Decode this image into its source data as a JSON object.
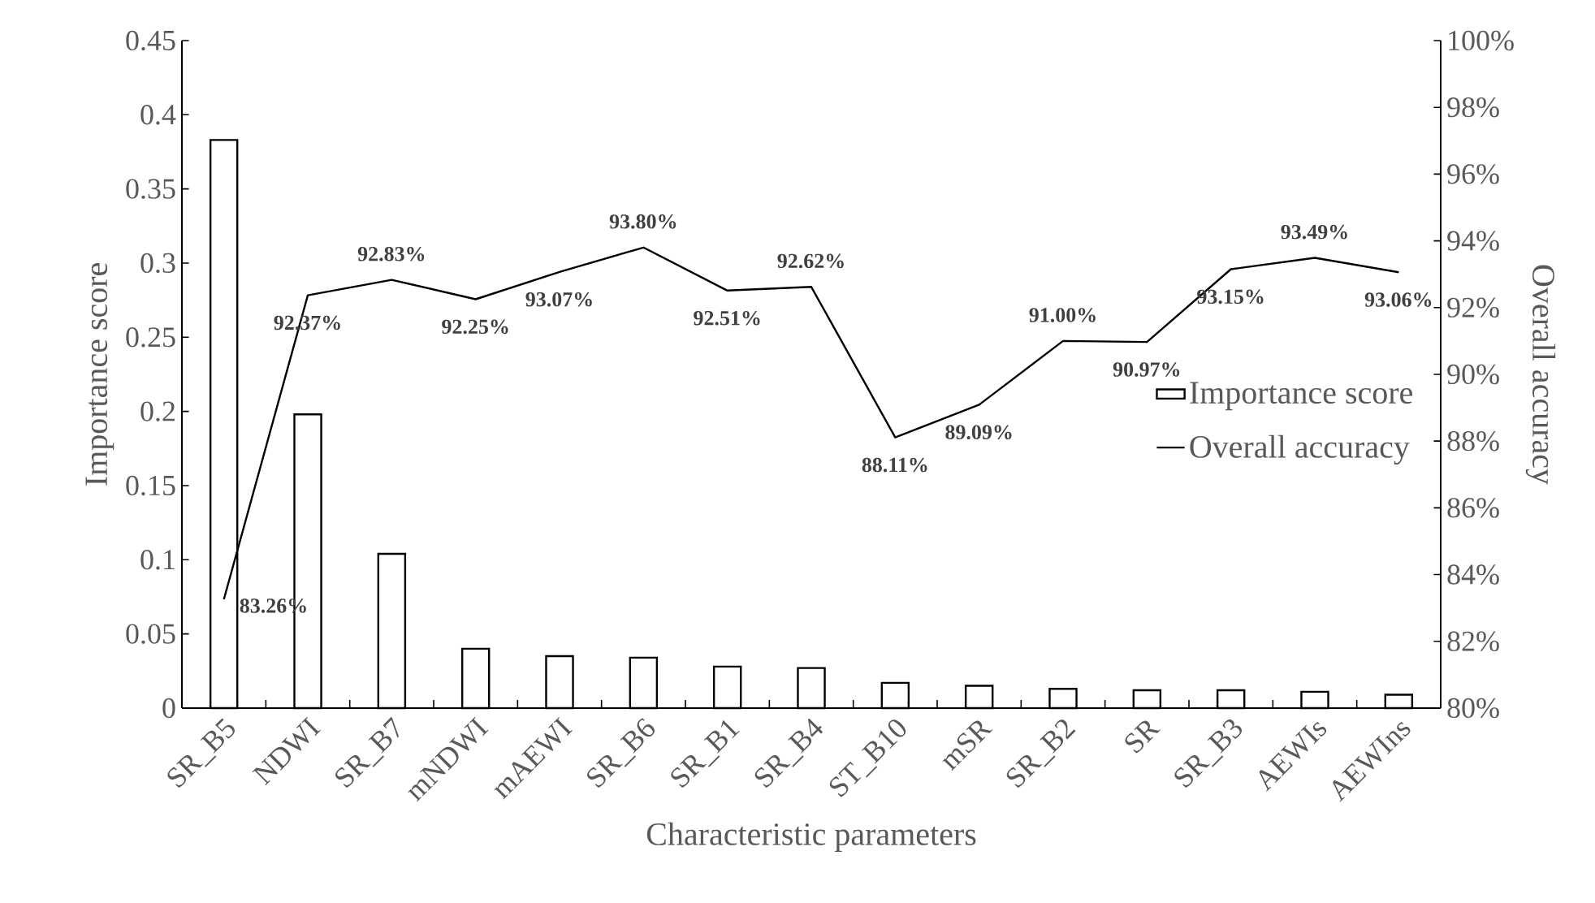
{
  "chart_data": {
    "type": "bar",
    "xlabel": "Characteristic parameters",
    "ylabel": "Importance score",
    "y2label": "Overall accuracy",
    "categories": [
      "SR_B5",
      "NDWI",
      "SR_B7",
      "mNDWI",
      "mAEWI",
      "SR_B6",
      "SR_B1",
      "SR_B4",
      "ST_B10",
      "mSR",
      "SR_B2",
      "SR",
      "SR_B3",
      "AEWIs",
      "AEWIns"
    ],
    "series": [
      {
        "name": "Importance score",
        "color": "#000000",
        "values": [
          0.383,
          0.198,
          0.104,
          0.04,
          0.035,
          0.034,
          0.028,
          0.027,
          0.017,
          0.015,
          0.013,
          0.012,
          0.012,
          0.011,
          0.009
        ]
      },
      {
        "name": "Overall accuracy",
        "type": "line",
        "axis": "y2",
        "color": "#000000",
        "values": [
          83.26,
          92.37,
          92.83,
          92.25,
          93.07,
          93.8,
          92.51,
          92.62,
          88.11,
          89.09,
          91.0,
          90.97,
          93.15,
          93.49,
          93.06
        ],
        "value_labels": [
          "83.26%",
          "92.37%",
          "92.83%",
          "92.25%",
          "93.07%",
          "93.80%",
          "92.51%",
          "92.62%",
          "88.11%",
          "89.09%",
          "91.00%",
          "90.97%",
          "93.15%",
          "93.49%",
          "93.06%"
        ]
      }
    ],
    "ylim": [
      0,
      0.45
    ],
    "yticks": [
      0,
      0.05,
      0.1,
      0.15,
      0.2,
      0.25,
      0.3,
      0.35,
      0.4,
      0.45
    ],
    "y2lim": [
      80,
      100
    ],
    "y2ticks": [
      {
        "value": 80,
        "label": "80%"
      },
      {
        "value": 82,
        "label": "82%"
      },
      {
        "value": 84,
        "label": "84%"
      },
      {
        "value": 86,
        "label": "86%"
      },
      {
        "value": 88,
        "label": "88%"
      },
      {
        "value": 90,
        "label": "90%"
      },
      {
        "value": 92,
        "label": "92%"
      },
      {
        "value": 94,
        "label": "94%"
      },
      {
        "value": 96,
        "label": "96%"
      },
      {
        "value": 98,
        "label": "98%"
      },
      {
        "value": 100,
        "label": "100%"
      }
    ],
    "legend": "right",
    "grid": false,
    "marker": "none",
    "line_style": "solid"
  }
}
